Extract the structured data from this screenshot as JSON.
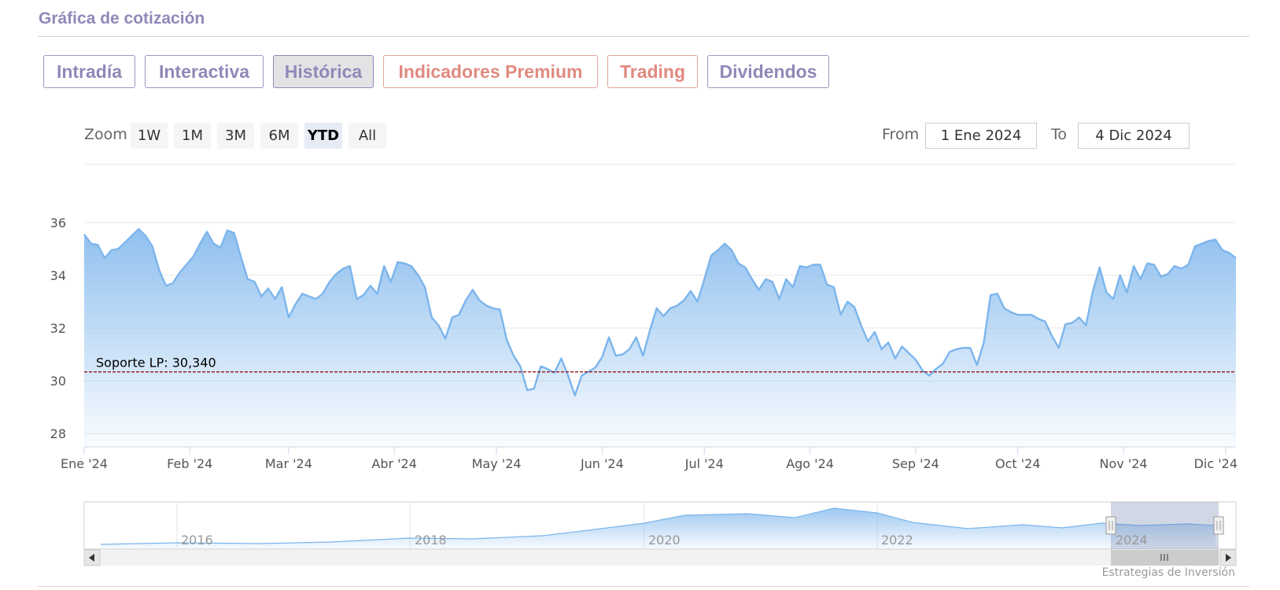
{
  "header": {
    "title": "Gráfica de cotización"
  },
  "tabs": [
    {
      "label": "Intradía",
      "state": "normal"
    },
    {
      "label": "Interactiva",
      "state": "normal"
    },
    {
      "label": "Histórica",
      "state": "active"
    },
    {
      "label": "Indicadores Premium",
      "state": "premium"
    },
    {
      "label": "Trading",
      "state": "premium"
    },
    {
      "label": "Dividendos",
      "state": "normal"
    }
  ],
  "range_selector": {
    "zoom_label": "Zoom",
    "buttons": [
      "1W",
      "1M",
      "3M",
      "6M",
      "YTD",
      "All"
    ],
    "active": "YTD",
    "from_label": "From",
    "from_value": "1 Ene 2024",
    "to_label": "To",
    "to_value": "4 Dic 2024"
  },
  "colors": {
    "line": "#7cb5ec",
    "support": "#8b0000",
    "tab_text": "#8f89b8",
    "premium_text": "#e08a80"
  },
  "chart_data": {
    "type": "area",
    "title": "",
    "ylim": [
      27.5,
      38.2
    ],
    "yticks": [
      28,
      30,
      32,
      34,
      36
    ],
    "xlabels": [
      "Ene '24",
      "Feb '24",
      "Mar '24",
      "Abr '24",
      "May '24",
      "Jun '24",
      "Jul '24",
      "Ago '24",
      "Sep '24",
      "Oct '24",
      "Nov '24",
      "Dic '24"
    ],
    "x_domain": [
      "2024-01-01",
      "2024-12-04"
    ],
    "grid": true,
    "support_line": {
      "label": "Soporte LP: 30,340",
      "value": 30.34
    },
    "series": [
      {
        "values": [
          [
            "2024-01-01",
            35.55
          ],
          [
            "2024-01-03",
            35.2
          ],
          [
            "2024-01-05",
            35.15
          ],
          [
            "2024-01-07",
            34.65
          ],
          [
            "2024-01-09",
            34.95
          ],
          [
            "2024-01-11",
            35.0
          ],
          [
            "2024-01-13",
            35.25
          ],
          [
            "2024-01-15",
            35.5
          ],
          [
            "2024-01-17",
            35.75
          ],
          [
            "2024-01-19",
            35.5
          ],
          [
            "2024-01-21",
            35.1
          ],
          [
            "2024-01-23",
            34.2
          ],
          [
            "2024-01-25",
            33.6
          ],
          [
            "2024-01-27",
            33.7
          ],
          [
            "2024-01-29",
            34.1
          ],
          [
            "2024-01-31",
            34.4
          ],
          [
            "2024-02-02",
            34.7
          ],
          [
            "2024-02-04",
            35.2
          ],
          [
            "2024-02-06",
            35.65
          ],
          [
            "2024-02-08",
            35.2
          ],
          [
            "2024-02-10",
            35.05
          ],
          [
            "2024-02-12",
            35.7
          ],
          [
            "2024-02-14",
            35.6
          ],
          [
            "2024-02-16",
            34.7
          ],
          [
            "2024-02-18",
            33.85
          ],
          [
            "2024-02-20",
            33.75
          ],
          [
            "2024-02-22",
            33.2
          ],
          [
            "2024-02-24",
            33.5
          ],
          [
            "2024-02-26",
            33.1
          ],
          [
            "2024-02-28",
            33.55
          ],
          [
            "2024-03-01",
            32.4
          ],
          [
            "2024-03-03",
            32.9
          ],
          [
            "2024-03-05",
            33.3
          ],
          [
            "2024-03-07",
            33.2
          ],
          [
            "2024-03-09",
            33.1
          ],
          [
            "2024-03-11",
            33.3
          ],
          [
            "2024-03-13",
            33.75
          ],
          [
            "2024-03-15",
            34.05
          ],
          [
            "2024-03-17",
            34.25
          ],
          [
            "2024-03-19",
            34.35
          ],
          [
            "2024-03-21",
            33.1
          ],
          [
            "2024-03-23",
            33.25
          ],
          [
            "2024-03-25",
            33.6
          ],
          [
            "2024-03-27",
            33.3
          ],
          [
            "2024-03-29",
            34.35
          ],
          [
            "2024-03-31",
            33.75
          ],
          [
            "2024-04-02",
            34.5
          ],
          [
            "2024-04-04",
            34.45
          ],
          [
            "2024-04-06",
            34.35
          ],
          [
            "2024-04-08",
            34.0
          ],
          [
            "2024-04-10",
            33.55
          ],
          [
            "2024-04-12",
            32.4
          ],
          [
            "2024-04-14",
            32.1
          ],
          [
            "2024-04-16",
            31.6
          ],
          [
            "2024-04-18",
            32.4
          ],
          [
            "2024-04-20",
            32.5
          ],
          [
            "2024-04-22",
            33.05
          ],
          [
            "2024-04-24",
            33.45
          ],
          [
            "2024-04-26",
            33.05
          ],
          [
            "2024-04-28",
            32.85
          ],
          [
            "2024-04-30",
            32.75
          ],
          [
            "2024-05-02",
            32.7
          ],
          [
            "2024-05-04",
            31.55
          ],
          [
            "2024-05-06",
            30.95
          ],
          [
            "2024-05-08",
            30.55
          ],
          [
            "2024-05-10",
            29.65
          ],
          [
            "2024-05-12",
            29.7
          ],
          [
            "2024-05-14",
            30.55
          ],
          [
            "2024-05-16",
            30.45
          ],
          [
            "2024-05-18",
            30.3
          ],
          [
            "2024-05-20",
            30.85
          ],
          [
            "2024-05-22",
            30.2
          ],
          [
            "2024-05-24",
            29.45
          ],
          [
            "2024-05-26",
            30.2
          ],
          [
            "2024-05-28",
            30.35
          ],
          [
            "2024-05-30",
            30.5
          ],
          [
            "2024-06-01",
            30.9
          ],
          [
            "2024-06-03",
            31.65
          ],
          [
            "2024-06-05",
            30.95
          ],
          [
            "2024-06-07",
            31.0
          ],
          [
            "2024-06-09",
            31.2
          ],
          [
            "2024-06-11",
            31.65
          ],
          [
            "2024-06-13",
            30.95
          ],
          [
            "2024-06-15",
            31.9
          ],
          [
            "2024-06-17",
            32.75
          ],
          [
            "2024-06-19",
            32.45
          ],
          [
            "2024-06-21",
            32.75
          ],
          [
            "2024-06-23",
            32.85
          ],
          [
            "2024-06-25",
            33.05
          ],
          [
            "2024-06-27",
            33.4
          ],
          [
            "2024-06-29",
            33.0
          ],
          [
            "2024-07-01",
            33.85
          ],
          [
            "2024-07-03",
            34.75
          ],
          [
            "2024-07-05",
            34.95
          ],
          [
            "2024-07-07",
            35.2
          ],
          [
            "2024-07-09",
            34.95
          ],
          [
            "2024-07-11",
            34.45
          ],
          [
            "2024-07-13",
            34.3
          ],
          [
            "2024-07-15",
            33.85
          ],
          [
            "2024-07-17",
            33.45
          ],
          [
            "2024-07-19",
            33.85
          ],
          [
            "2024-07-21",
            33.75
          ],
          [
            "2024-07-23",
            33.1
          ],
          [
            "2024-07-25",
            33.85
          ],
          [
            "2024-07-27",
            33.55
          ],
          [
            "2024-07-29",
            34.35
          ],
          [
            "2024-07-31",
            34.3
          ],
          [
            "2024-08-02",
            34.4
          ],
          [
            "2024-08-04",
            34.4
          ],
          [
            "2024-08-06",
            33.65
          ],
          [
            "2024-08-08",
            33.55
          ],
          [
            "2024-08-10",
            32.5
          ],
          [
            "2024-08-12",
            33.0
          ],
          [
            "2024-08-14",
            32.8
          ],
          [
            "2024-08-16",
            32.1
          ],
          [
            "2024-08-18",
            31.5
          ],
          [
            "2024-08-20",
            31.85
          ],
          [
            "2024-08-22",
            31.2
          ],
          [
            "2024-08-24",
            31.45
          ],
          [
            "2024-08-26",
            30.85
          ],
          [
            "2024-08-28",
            31.3
          ],
          [
            "2024-08-30",
            31.05
          ],
          [
            "2024-09-01",
            30.8
          ],
          [
            "2024-09-03",
            30.4
          ],
          [
            "2024-09-05",
            30.2
          ],
          [
            "2024-09-07",
            30.45
          ],
          [
            "2024-09-09",
            30.65
          ],
          [
            "2024-09-11",
            31.1
          ],
          [
            "2024-09-13",
            31.2
          ],
          [
            "2024-09-15",
            31.25
          ],
          [
            "2024-09-17",
            31.25
          ],
          [
            "2024-09-19",
            30.6
          ],
          [
            "2024-09-21",
            31.45
          ],
          [
            "2024-09-23",
            33.25
          ],
          [
            "2024-09-25",
            33.3
          ],
          [
            "2024-09-27",
            32.75
          ],
          [
            "2024-09-29",
            32.6
          ],
          [
            "2024-10-01",
            32.5
          ],
          [
            "2024-10-03",
            32.5
          ],
          [
            "2024-10-05",
            32.5
          ],
          [
            "2024-10-07",
            32.35
          ],
          [
            "2024-10-09",
            32.25
          ],
          [
            "2024-10-11",
            31.7
          ],
          [
            "2024-10-13",
            31.25
          ],
          [
            "2024-10-15",
            32.15
          ],
          [
            "2024-10-17",
            32.2
          ],
          [
            "2024-10-19",
            32.4
          ],
          [
            "2024-10-21",
            32.1
          ],
          [
            "2024-10-23",
            33.4
          ],
          [
            "2024-10-25",
            34.3
          ],
          [
            "2024-10-27",
            33.35
          ],
          [
            "2024-10-29",
            33.1
          ],
          [
            "2024-10-31",
            34.0
          ],
          [
            "2024-11-02",
            33.35
          ],
          [
            "2024-11-04",
            34.35
          ],
          [
            "2024-11-06",
            33.85
          ],
          [
            "2024-11-08",
            34.45
          ],
          [
            "2024-11-10",
            34.4
          ],
          [
            "2024-11-12",
            33.95
          ],
          [
            "2024-11-14",
            34.05
          ],
          [
            "2024-11-16",
            34.35
          ],
          [
            "2024-11-18",
            34.25
          ],
          [
            "2024-11-20",
            34.4
          ],
          [
            "2024-11-22",
            35.1
          ],
          [
            "2024-11-24",
            35.2
          ],
          [
            "2024-11-26",
            35.3
          ],
          [
            "2024-11-28",
            35.35
          ],
          [
            "2024-11-30",
            34.95
          ],
          [
            "2024-12-02",
            34.85
          ],
          [
            "2024-12-04",
            34.65
          ]
        ]
      }
    ]
  },
  "navigator": {
    "year_labels": [
      "2016",
      "2018",
      "2020",
      "2022",
      "2024"
    ]
  },
  "credits": "Estrategias de Inversión"
}
